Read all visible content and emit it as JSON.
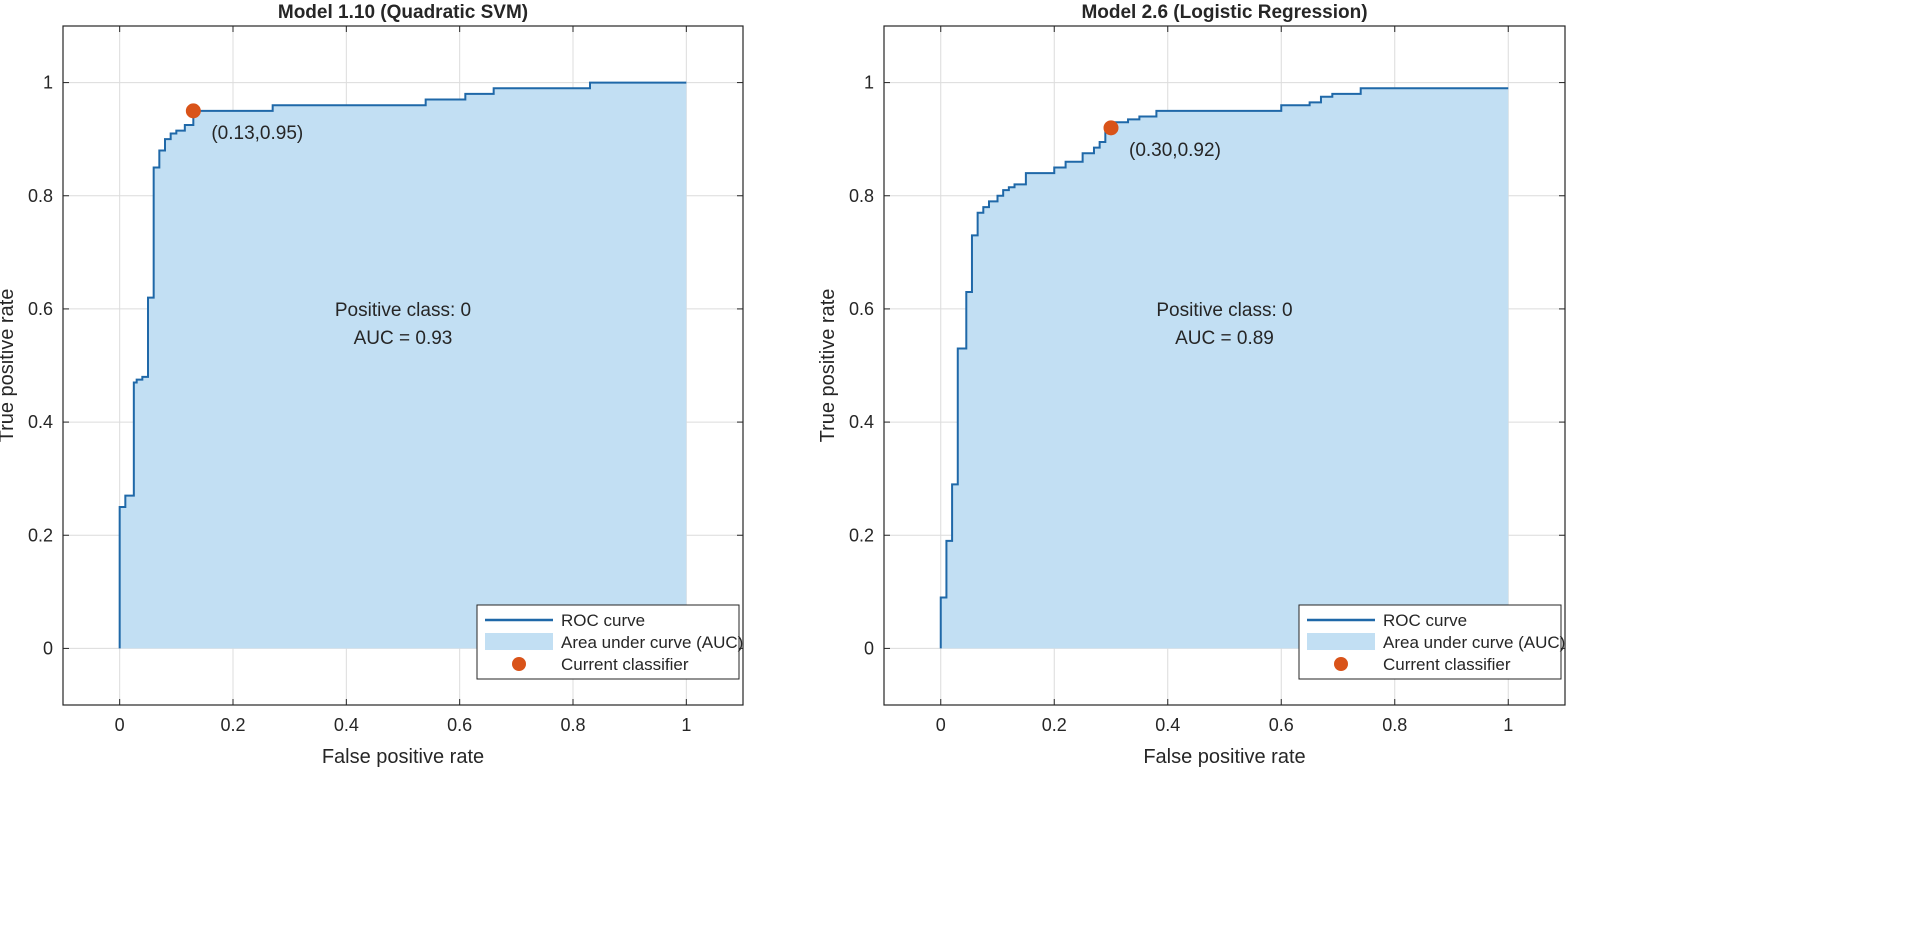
{
  "chart_data": [
    {
      "type": "area",
      "title": "Model 1.10 (Quadratic SVM)",
      "xlabel": "False positive rate",
      "ylabel": "True positive rate",
      "xlim": [
        -0.1,
        1.1
      ],
      "ylim": [
        -0.1,
        1.1
      ],
      "xticks": [
        0,
        0.2,
        0.4,
        0.6,
        0.8,
        1
      ],
      "yticks": [
        0,
        0.2,
        0.4,
        0.6,
        0.8,
        1
      ],
      "xtick_labels": [
        "0",
        "0.2",
        "0.4",
        "0.6",
        "0.8",
        "1"
      ],
      "ytick_labels": [
        "0",
        "0.2",
        "0.4",
        "0.6",
        "0.8",
        "1"
      ],
      "grid": true,
      "roc": {
        "x": [
          0,
          0,
          0.01,
          0.01,
          0.025,
          0.025,
          0.03,
          0.03,
          0.04,
          0.04,
          0.05,
          0.05,
          0.06,
          0.06,
          0.07,
          0.07,
          0.08,
          0.08,
          0.09,
          0.09,
          0.1,
          0.1,
          0.115,
          0.115,
          0.13,
          0.13,
          0.27,
          0.27,
          0.54,
          0.54,
          0.61,
          0.61,
          0.66,
          0.66,
          0.83,
          0.83,
          1.0
        ],
        "y": [
          0,
          0.25,
          0.25,
          0.27,
          0.27,
          0.47,
          0.47,
          0.475,
          0.475,
          0.48,
          0.48,
          0.62,
          0.62,
          0.85,
          0.85,
          0.88,
          0.88,
          0.9,
          0.9,
          0.91,
          0.91,
          0.915,
          0.915,
          0.925,
          0.925,
          0.95,
          0.95,
          0.96,
          0.96,
          0.97,
          0.97,
          0.98,
          0.98,
          0.99,
          0.99,
          1.0,
          1.0
        ]
      },
      "current_classifier": {
        "x": 0.13,
        "y": 0.95,
        "label": "(0.13,0.95)"
      },
      "annotation_lines": [
        "Positive class: 0",
        "AUC = 0.93"
      ],
      "legend": {
        "position": "bottom-right",
        "entries": [
          "ROC curve",
          "Area under curve (AUC)",
          "Current classifier"
        ]
      },
      "colors": {
        "line": "#1f68a8",
        "fill": "#c2dff3",
        "marker": "#d95319",
        "grid": "#dcdcdc",
        "axis": "#262626"
      }
    },
    {
      "type": "area",
      "title": "Model 2.6 (Logistic Regression)",
      "xlabel": "False positive rate",
      "ylabel": "True positive rate",
      "xlim": [
        -0.1,
        1.1
      ],
      "ylim": [
        -0.1,
        1.1
      ],
      "xticks": [
        0,
        0.2,
        0.4,
        0.6,
        0.8,
        1
      ],
      "yticks": [
        0,
        0.2,
        0.4,
        0.6,
        0.8,
        1
      ],
      "xtick_labels": [
        "0",
        "0.2",
        "0.4",
        "0.6",
        "0.8",
        "1"
      ],
      "ytick_labels": [
        "0",
        "0.2",
        "0.4",
        "0.6",
        "0.8",
        "1"
      ],
      "grid": true,
      "roc": {
        "x": [
          0,
          0,
          0.01,
          0.01,
          0.02,
          0.02,
          0.03,
          0.03,
          0.045,
          0.045,
          0.055,
          0.055,
          0.065,
          0.065,
          0.075,
          0.075,
          0.085,
          0.085,
          0.1,
          0.1,
          0.11,
          0.11,
          0.12,
          0.12,
          0.13,
          0.13,
          0.14,
          0.14,
          0.15,
          0.15,
          0.2,
          0.2,
          0.22,
          0.22,
          0.24,
          0.24,
          0.25,
          0.25,
          0.27,
          0.27,
          0.28,
          0.28,
          0.29,
          0.29,
          0.3,
          0.3,
          0.33,
          0.33,
          0.35,
          0.35,
          0.38,
          0.38,
          0.4,
          0.4,
          0.6,
          0.6,
          0.65,
          0.65,
          0.67,
          0.67,
          0.69,
          0.69,
          0.74,
          0.74,
          1.0
        ],
        "y": [
          0,
          0.09,
          0.09,
          0.19,
          0.19,
          0.29,
          0.29,
          0.53,
          0.53,
          0.63,
          0.63,
          0.73,
          0.73,
          0.77,
          0.77,
          0.78,
          0.78,
          0.79,
          0.79,
          0.8,
          0.8,
          0.81,
          0.81,
          0.815,
          0.815,
          0.82,
          0.82,
          0.82,
          0.82,
          0.84,
          0.84,
          0.85,
          0.85,
          0.86,
          0.86,
          0.86,
          0.86,
          0.875,
          0.875,
          0.885,
          0.885,
          0.895,
          0.895,
          0.92,
          0.92,
          0.93,
          0.93,
          0.935,
          0.935,
          0.94,
          0.94,
          0.95,
          0.95,
          0.95,
          0.95,
          0.96,
          0.96,
          0.965,
          0.965,
          0.975,
          0.975,
          0.98,
          0.98,
          0.99,
          0.99
        ]
      },
      "current_classifier": {
        "x": 0.3,
        "y": 0.92,
        "label": "(0.30,0.92)"
      },
      "annotation_lines": [
        "Positive class: 0",
        "AUC = 0.89"
      ],
      "legend": {
        "position": "bottom-right",
        "entries": [
          "ROC curve",
          "Area under curve (AUC)",
          "Current classifier"
        ]
      },
      "colors": {
        "line": "#1f68a8",
        "fill": "#c2dff3",
        "marker": "#d95319",
        "grid": "#dcdcdc",
        "axis": "#262626"
      }
    }
  ]
}
